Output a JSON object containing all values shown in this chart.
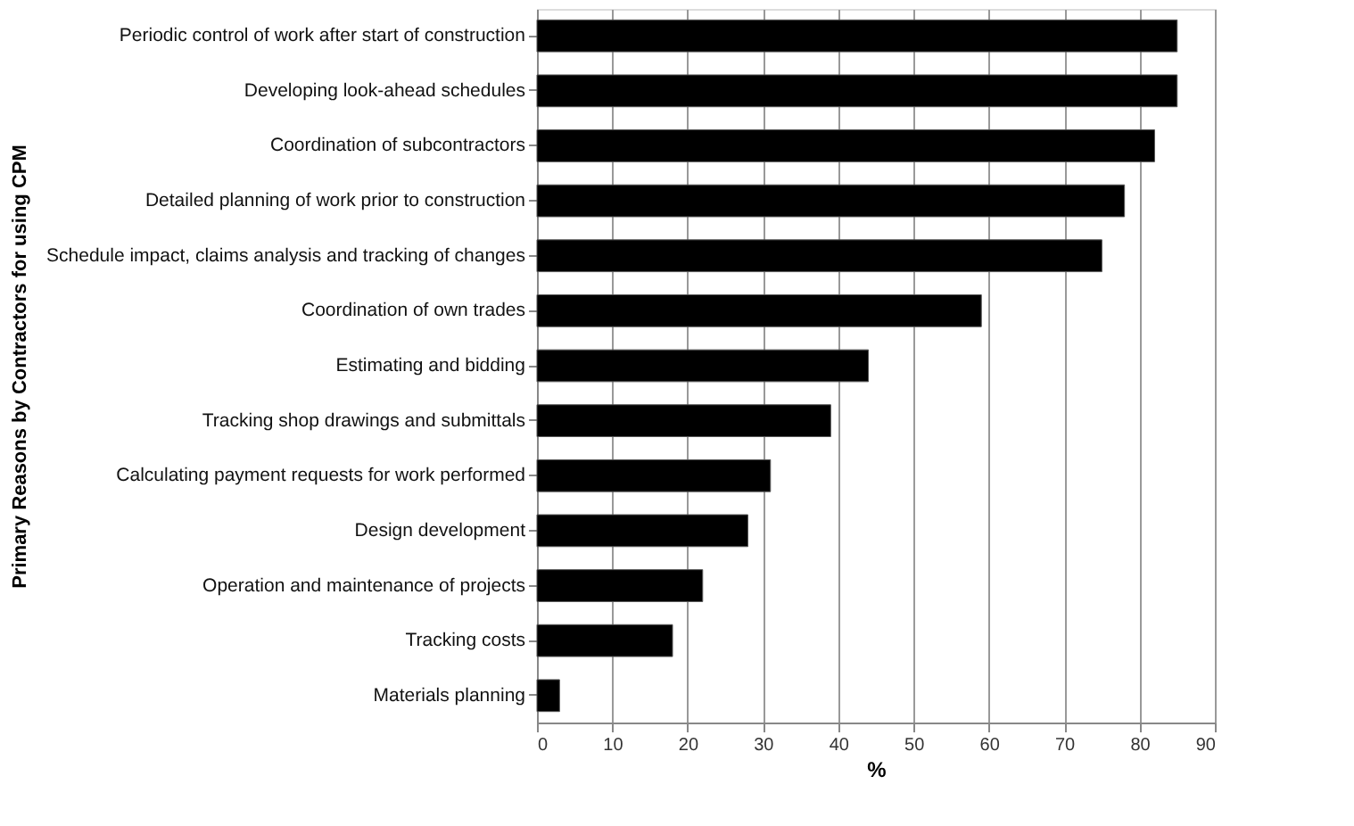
{
  "chart_data": {
    "type": "bar",
    "orientation": "horizontal",
    "xlabel": "%",
    "ylabel": "Primary Reasons by Contractors for using CPM",
    "categories": [
      "Periodic control of work after start of construction",
      "Developing look-ahead schedules",
      "Coordination of subcontractors",
      "Detailed planning of work prior to construction",
      "Schedule impact, claims analysis and tracking of changes",
      "Coordination of own trades",
      "Estimating and bidding",
      "Tracking shop drawings and submittals",
      "Calculating payment requests for work performed",
      "Design development",
      "Operation and maintenance of projects",
      "Tracking costs",
      "Materials planning"
    ],
    "values": [
      85,
      85,
      82,
      78,
      75,
      59,
      44,
      39,
      31,
      28,
      22,
      18,
      3
    ],
    "color": "#000000",
    "xlim": [
      0,
      90
    ],
    "xticks": [
      0,
      10,
      20,
      30,
      40,
      50,
      60,
      70,
      80,
      90
    ],
    "grid": "x"
  }
}
